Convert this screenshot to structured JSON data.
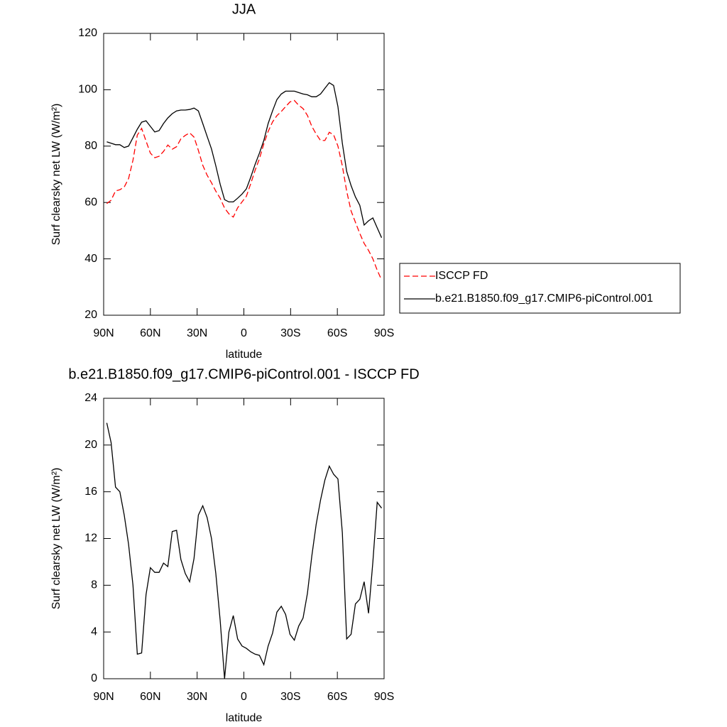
{
  "chart_data": [
    {
      "type": "line",
      "title": "JJA",
      "xlabel": "latitude",
      "ylabel": "Surf clearsky net LW (W/m²)",
      "x": [
        88,
        85.2,
        82.4,
        79.6,
        76.8,
        74,
        71.2,
        68.4,
        65.6,
        62.8,
        60,
        57.2,
        54.4,
        51.6,
        48.8,
        46,
        43.2,
        40.4,
        37.6,
        34.8,
        32,
        29.2,
        26.4,
        23.6,
        20.8,
        18,
        15.2,
        12.4,
        9.6,
        6.8,
        4,
        1.2,
        -1.6,
        -4.4,
        -7.2,
        -10,
        -12.8,
        -15.6,
        -18.4,
        -21.2,
        -24,
        -26.8,
        -29.6,
        -32.4,
        -35.2,
        -38,
        -40.8,
        -43.6,
        -46.4,
        -49.2,
        -52,
        -54.8,
        -57.6,
        -60.4,
        -63.2,
        -66,
        -68.8,
        -71.6,
        -74.4,
        -77.2,
        -80,
        -82.8,
        -85.6,
        -88.4
      ],
      "series": [
        {
          "name": "ISCCP FD",
          "color": "#ff0000",
          "dashed": true,
          "values": [
            59.6,
            60.8,
            64.1,
            64.5,
            65.5,
            68.5,
            75,
            83.9,
            86.3,
            81.8,
            77.5,
            75.9,
            76.4,
            78.1,
            80.4,
            78.9,
            79.8,
            82.6,
            83.8,
            84.7,
            83.2,
            78.5,
            73.2,
            69.7,
            67,
            64,
            61.5,
            58,
            56,
            54.8,
            58.1,
            60.2,
            62.2,
            66.7,
            71.4,
            75.5,
            80.8,
            85.2,
            88.6,
            90.8,
            92.3,
            94,
            95.7,
            96.2,
            94.5,
            93.3,
            90.9,
            87,
            84.3,
            82,
            82,
            84.9,
            84,
            80,
            73,
            64,
            57,
            53,
            49,
            45.5,
            43,
            40,
            36,
            32.5
          ]
        },
        {
          "name": "b.e21.B1850.f09_g17.CMIP6-piControl.001",
          "color": "#000000",
          "dashed": false,
          "values": [
            81.5,
            81,
            80.5,
            80.5,
            79.5,
            80,
            83,
            86,
            88.5,
            89,
            87,
            85,
            85.5,
            88,
            90,
            91.5,
            92.5,
            92.8,
            92.8,
            93,
            93.5,
            92.5,
            88,
            83.5,
            79,
            73,
            66.5,
            61,
            60.2,
            60.2,
            61.5,
            63,
            64.8,
            69,
            73.5,
            77.5,
            82,
            88,
            92.5,
            96.5,
            98.5,
            99.5,
            99.5,
            99.5,
            99,
            98.5,
            98.2,
            97.5,
            97.5,
            98.5,
            100.5,
            102.5,
            101.5,
            94,
            81,
            71,
            66,
            62,
            59,
            52,
            53.5,
            54.5,
            51,
            47.5
          ]
        }
      ],
      "xlim": [
        90,
        -90
      ],
      "ylim": [
        20,
        120
      ],
      "xticks": [
        {
          "value": 90,
          "label": "90N"
        },
        {
          "value": 60,
          "label": "60N"
        },
        {
          "value": 30,
          "label": "30N"
        },
        0,
        {
          "value": -30,
          "label": "30S"
        },
        {
          "value": -60,
          "label": "60S"
        },
        {
          "value": -90,
          "label": "90S"
        }
      ],
      "yticks": [
        20,
        40,
        60,
        80,
        100,
        120
      ],
      "legend": "right"
    },
    {
      "type": "line",
      "title": "b.e21.B1850.f09_g17.CMIP6-piControl.001 - ISCCP FD",
      "xlabel": "latitude",
      "ylabel": "Surf clearsky net LW (W/m²)",
      "x": [
        88,
        85.2,
        82.4,
        79.6,
        76.8,
        74,
        71.2,
        68.4,
        65.6,
        62.8,
        60,
        57.2,
        54.4,
        51.6,
        48.8,
        46,
        43.2,
        40.4,
        37.6,
        34.8,
        32,
        29.2,
        26.4,
        23.6,
        20.8,
        18,
        15.2,
        12.4,
        9.6,
        6.8,
        4,
        1.2,
        -1.6,
        -4.4,
        -7.2,
        -10,
        -12.8,
        -15.6,
        -18.4,
        -21.2,
        -24,
        -26.8,
        -29.6,
        -32.4,
        -35.2,
        -38,
        -40.8,
        -43.6,
        -46.4,
        -49.2,
        -52,
        -54.8,
        -57.6,
        -60.4,
        -63.2,
        -66,
        -68.8,
        -71.6,
        -74.4,
        -77.2,
        -80,
        -82.8,
        -85.6,
        -88.4
      ],
      "values": [
        21.9,
        20.2,
        16.4,
        16,
        14,
        11.5,
        8,
        2.1,
        2.2,
        7.2,
        9.5,
        9.1,
        9.1,
        9.9,
        9.6,
        12.6,
        12.7,
        10.2,
        9,
        8.3,
        10.3,
        14,
        14.8,
        13.8,
        12,
        9,
        5,
        0,
        4,
        5.4,
        3.4,
        2.8,
        2.6,
        2.3,
        2.1,
        2,
        1.2,
        2.8,
        3.9,
        5.7,
        6.2,
        5.5,
        3.8,
        3.3,
        4.5,
        5.2,
        7.3,
        10.5,
        13.2,
        15.3,
        17,
        18.2,
        17.5,
        17.1,
        12.5,
        3.4,
        3.8,
        6.4,
        6.8,
        8.3,
        5.6,
        10,
        15.1,
        14.6
      ],
      "color": "#000000",
      "xlim": [
        90,
        -90
      ],
      "ylim": [
        0,
        24
      ],
      "xticks": [
        {
          "value": 90,
          "label": "90N"
        },
        {
          "value": 60,
          "label": "60N"
        },
        {
          "value": 30,
          "label": "30N"
        },
        0,
        {
          "value": -30,
          "label": "30S"
        },
        {
          "value": -60,
          "label": "60S"
        },
        {
          "value": -90,
          "label": "90S"
        }
      ],
      "yticks": [
        0,
        4,
        8,
        12,
        16,
        20,
        24
      ]
    }
  ]
}
